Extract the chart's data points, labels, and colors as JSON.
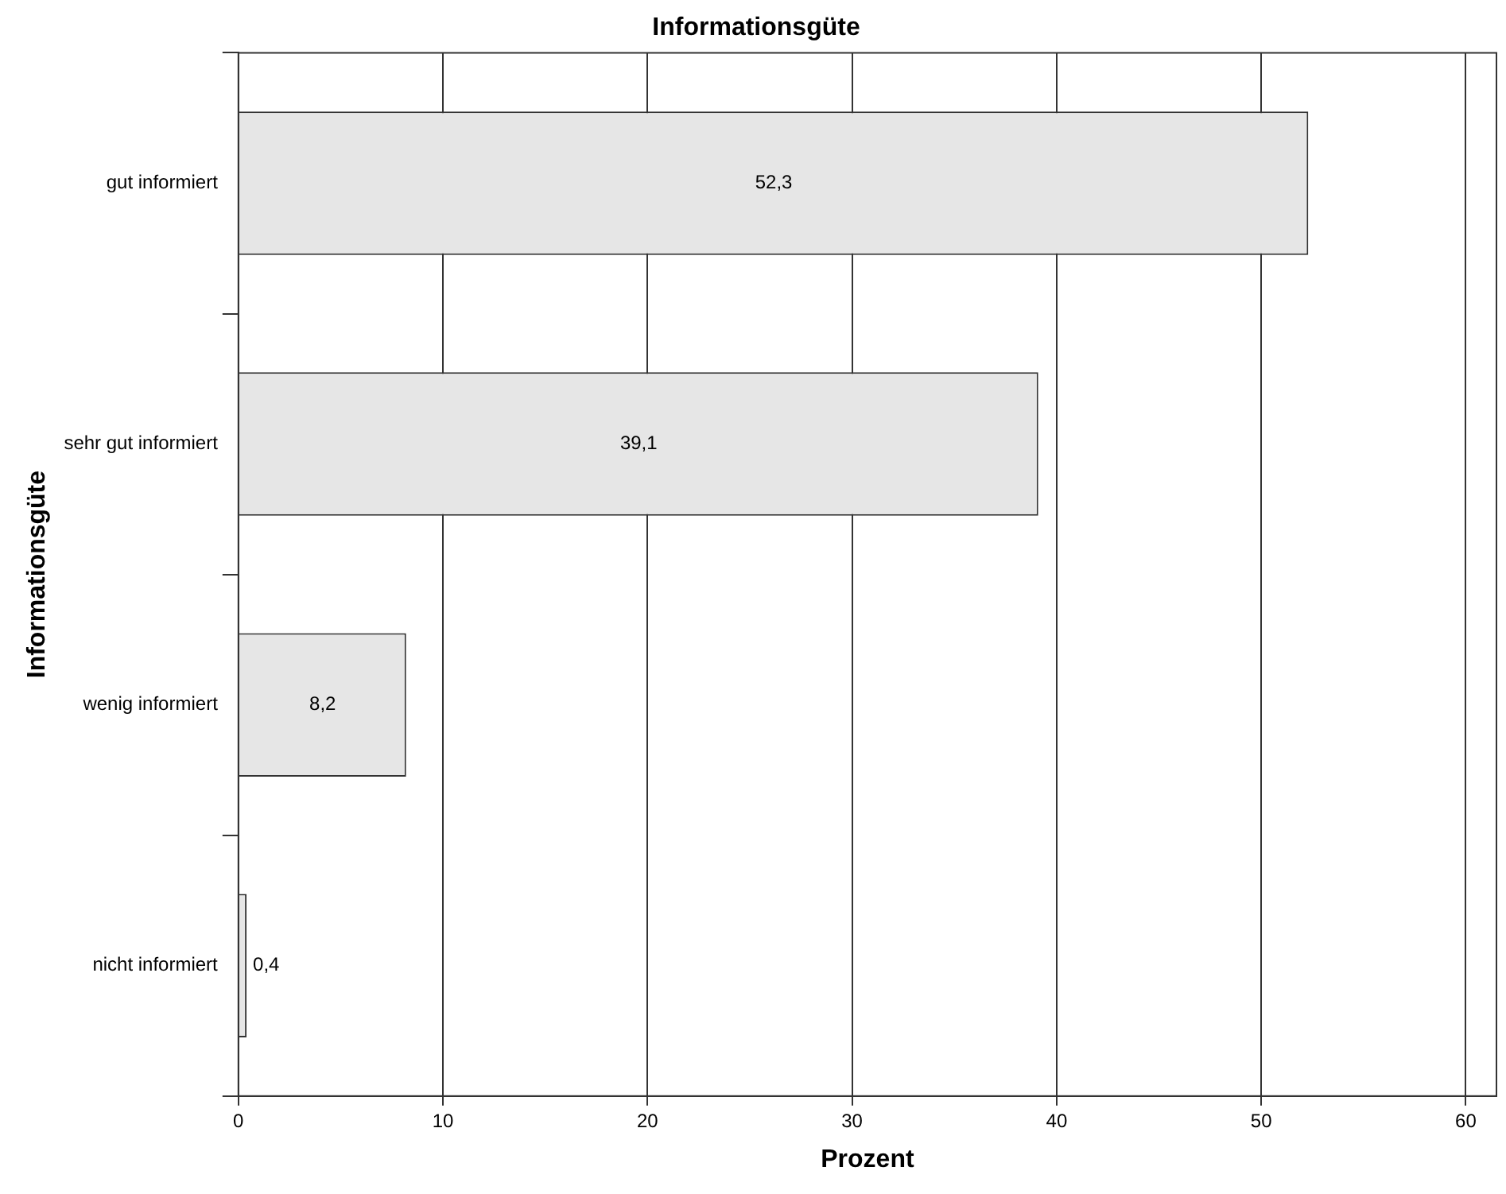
{
  "chart_data": {
    "type": "bar",
    "orientation": "horizontal",
    "title": "Informationsgüte",
    "xlabel": "Prozent",
    "ylabel": "Informationsgüte",
    "categories": [
      "gut informiert",
      "sehr gut informiert",
      "wenig informiert",
      "nicht informiert"
    ],
    "values": [
      52.3,
      39.1,
      8.2,
      0.4
    ],
    "value_labels": [
      "52,3",
      "39,1",
      "8,2",
      "0,4"
    ],
    "color": "#e6e6e6",
    "xlim": [
      0,
      61.5
    ],
    "xticks": [
      0,
      10,
      20,
      30,
      40,
      50,
      60
    ],
    "grid": "x",
    "legend": false
  }
}
